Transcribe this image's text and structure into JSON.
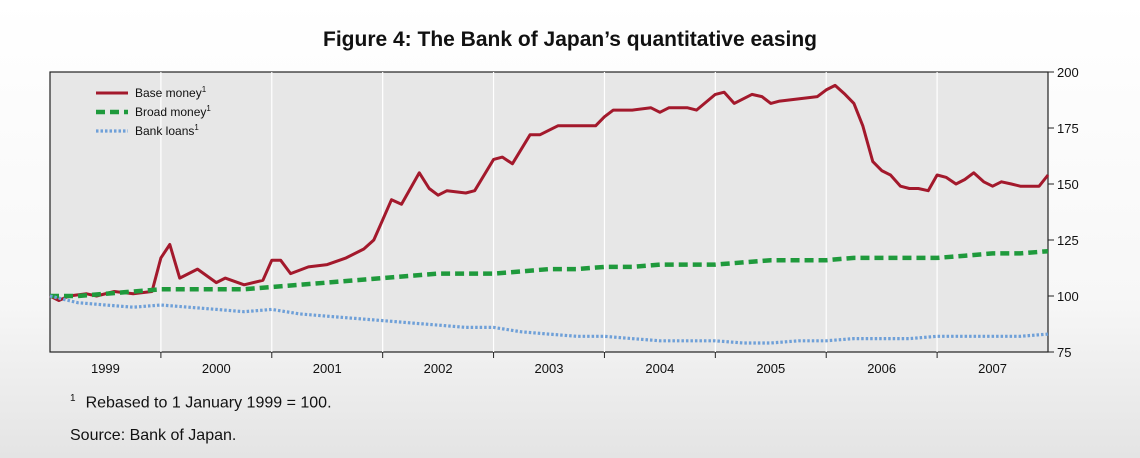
{
  "figure": {
    "title": "Figure 4: The Bank of Japan’s quantitative easing",
    "footnote_marker": "1",
    "footnote": "Rebased to 1 January 1999 = 100.",
    "source": "Source: Bank of Japan."
  },
  "chart_data": {
    "type": "line",
    "title": "Figure 4: The Bank of Japan’s quantitative easing",
    "xlabel": "",
    "ylabel": "",
    "xlim": [
      1999.0,
      2008.0
    ],
    "ylim": [
      75,
      200
    ],
    "yticks": [
      75,
      100,
      125,
      150,
      175,
      200
    ],
    "xticks": [
      1999,
      2000,
      2001,
      2002,
      2003,
      2004,
      2005,
      2006,
      2007
    ],
    "grid": "vertical",
    "legend": "top-left",
    "series": [
      {
        "name": "Base money",
        "marker": "1",
        "color": "#a3192c",
        "style": "solid",
        "points": [
          [
            1999.0,
            100
          ],
          [
            1999.08,
            98
          ],
          [
            1999.17,
            100
          ],
          [
            1999.33,
            101
          ],
          [
            1999.42,
            100
          ],
          [
            1999.58,
            102
          ],
          [
            1999.75,
            101
          ],
          [
            1999.92,
            102
          ],
          [
            2000.0,
            117
          ],
          [
            2000.08,
            123
          ],
          [
            2000.17,
            108
          ],
          [
            2000.33,
            112
          ],
          [
            2000.5,
            106
          ],
          [
            2000.58,
            108
          ],
          [
            2000.75,
            105
          ],
          [
            2000.92,
            107
          ],
          [
            2001.0,
            116
          ],
          [
            2001.08,
            116
          ],
          [
            2001.17,
            110
          ],
          [
            2001.33,
            113
          ],
          [
            2001.5,
            114
          ],
          [
            2001.67,
            117
          ],
          [
            2001.83,
            121
          ],
          [
            2001.92,
            125
          ],
          [
            2002.0,
            134
          ],
          [
            2002.08,
            143
          ],
          [
            2002.17,
            141
          ],
          [
            2002.33,
            155
          ],
          [
            2002.42,
            148
          ],
          [
            2002.5,
            145
          ],
          [
            2002.58,
            147
          ],
          [
            2002.75,
            146
          ],
          [
            2002.83,
            147
          ],
          [
            2003.0,
            161
          ],
          [
            2003.08,
            162
          ],
          [
            2003.17,
            159
          ],
          [
            2003.33,
            172
          ],
          [
            2003.42,
            172
          ],
          [
            2003.58,
            176
          ],
          [
            2003.67,
            176
          ],
          [
            2003.75,
            176
          ],
          [
            2003.92,
            176
          ],
          [
            2004.0,
            180
          ],
          [
            2004.08,
            183
          ],
          [
            2004.25,
            183
          ],
          [
            2004.42,
            184
          ],
          [
            2004.5,
            182
          ],
          [
            2004.58,
            184
          ],
          [
            2004.75,
            184
          ],
          [
            2004.83,
            183
          ],
          [
            2005.0,
            190
          ],
          [
            2005.08,
            191
          ],
          [
            2005.17,
            186
          ],
          [
            2005.33,
            190
          ],
          [
            2005.42,
            189
          ],
          [
            2005.5,
            186
          ],
          [
            2005.58,
            187
          ],
          [
            2005.75,
            188
          ],
          [
            2005.92,
            189
          ],
          [
            2006.0,
            192
          ],
          [
            2006.08,
            194
          ],
          [
            2006.17,
            190
          ],
          [
            2006.25,
            186
          ],
          [
            2006.33,
            176
          ],
          [
            2006.42,
            160
          ],
          [
            2006.5,
            156
          ],
          [
            2006.58,
            154
          ],
          [
            2006.67,
            149
          ],
          [
            2006.75,
            148
          ],
          [
            2006.83,
            148
          ],
          [
            2006.92,
            147
          ],
          [
            2007.0,
            154
          ],
          [
            2007.08,
            153
          ],
          [
            2007.17,
            150
          ],
          [
            2007.25,
            152
          ],
          [
            2007.33,
            155
          ],
          [
            2007.42,
            151
          ],
          [
            2007.5,
            149
          ],
          [
            2007.58,
            151
          ],
          [
            2007.67,
            150
          ],
          [
            2007.75,
            149
          ],
          [
            2007.83,
            149
          ],
          [
            2007.92,
            149
          ],
          [
            2008.0,
            154
          ]
        ]
      },
      {
        "name": "Broad money",
        "marker": "1",
        "color": "#1f9a3c",
        "style": "dashed",
        "points": [
          [
            1999.0,
            100
          ],
          [
            1999.25,
            100
          ],
          [
            1999.5,
            101
          ],
          [
            1999.75,
            102
          ],
          [
            2000.0,
            103
          ],
          [
            2000.25,
            103
          ],
          [
            2000.5,
            103
          ],
          [
            2000.75,
            103
          ],
          [
            2001.0,
            104
          ],
          [
            2001.25,
            105
          ],
          [
            2001.5,
            106
          ],
          [
            2001.75,
            107
          ],
          [
            2002.0,
            108
          ],
          [
            2002.25,
            109
          ],
          [
            2002.5,
            110
          ],
          [
            2002.75,
            110
          ],
          [
            2003.0,
            110
          ],
          [
            2003.25,
            111
          ],
          [
            2003.5,
            112
          ],
          [
            2003.75,
            112
          ],
          [
            2004.0,
            113
          ],
          [
            2004.25,
            113
          ],
          [
            2004.5,
            114
          ],
          [
            2004.75,
            114
          ],
          [
            2005.0,
            114
          ],
          [
            2005.25,
            115
          ],
          [
            2005.5,
            116
          ],
          [
            2005.75,
            116
          ],
          [
            2006.0,
            116
          ],
          [
            2006.25,
            117
          ],
          [
            2006.5,
            117
          ],
          [
            2006.75,
            117
          ],
          [
            2007.0,
            117
          ],
          [
            2007.25,
            118
          ],
          [
            2007.5,
            119
          ],
          [
            2007.75,
            119
          ],
          [
            2008.0,
            120
          ]
        ]
      },
      {
        "name": "Bank loans",
        "marker": "1",
        "color": "#6fa0d8",
        "style": "dotted",
        "points": [
          [
            1999.0,
            100
          ],
          [
            1999.25,
            97
          ],
          [
            1999.5,
            96
          ],
          [
            1999.75,
            95
          ],
          [
            2000.0,
            96
          ],
          [
            2000.25,
            95
          ],
          [
            2000.5,
            94
          ],
          [
            2000.75,
            93
          ],
          [
            2001.0,
            94
          ],
          [
            2001.25,
            92
          ],
          [
            2001.5,
            91
          ],
          [
            2001.75,
            90
          ],
          [
            2002.0,
            89
          ],
          [
            2002.25,
            88
          ],
          [
            2002.5,
            87
          ],
          [
            2002.75,
            86
          ],
          [
            2003.0,
            86
          ],
          [
            2003.25,
            84
          ],
          [
            2003.5,
            83
          ],
          [
            2003.75,
            82
          ],
          [
            2004.0,
            82
          ],
          [
            2004.25,
            81
          ],
          [
            2004.5,
            80
          ],
          [
            2004.75,
            80
          ],
          [
            2005.0,
            80
          ],
          [
            2005.25,
            79
          ],
          [
            2005.5,
            79
          ],
          [
            2005.75,
            80
          ],
          [
            2006.0,
            80
          ],
          [
            2006.25,
            81
          ],
          [
            2006.5,
            81
          ],
          [
            2006.75,
            81
          ],
          [
            2007.0,
            82
          ],
          [
            2007.25,
            82
          ],
          [
            2007.5,
            82
          ],
          [
            2007.75,
            82
          ],
          [
            2008.0,
            83
          ]
        ]
      }
    ]
  }
}
